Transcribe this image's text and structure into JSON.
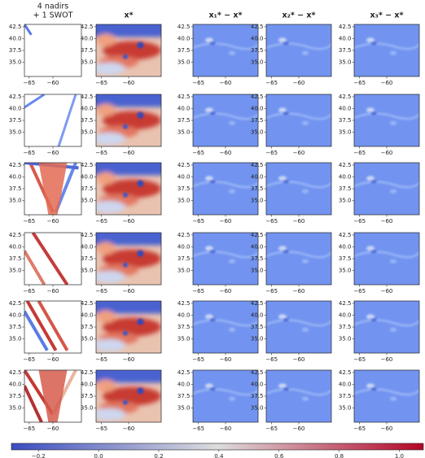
{
  "chart_data": {
    "type": "heatmap",
    "column_titles": [
      [
        "4 nadirs",
        "+ 1 SWOT"
      ],
      [
        "x*"
      ],
      [
        "x₁* − x*"
      ],
      [
        "x₂* − x*"
      ],
      [
        "x₃* − x*"
      ]
    ],
    "xlim": [
      -66,
      -54
    ],
    "xticks": [
      {
        "value": -65,
        "label": "−65"
      },
      {
        "value": -60,
        "label": "−60"
      }
    ],
    "ylim": [
      32,
      43
    ],
    "yticks": [
      {
        "value": 35,
        "label": "35.0"
      },
      37.5,
      {
        "value": 40,
        "label": "40.0"
      },
      42.5
    ],
    "colorbar": {
      "lim": [
        -0.29,
        1.08
      ],
      "ticks": [
        {
          "value": -0.2,
          "label": "−0.2"
        },
        {
          "value": 0,
          "label": "0.0"
        },
        0.2,
        0.4,
        0.6,
        0.8,
        {
          "value": 1,
          "label": "1.0"
        }
      ],
      "colors": [
        "#3b4cc0",
        "#dddddd",
        "#b40426"
      ]
    }
  }
}
